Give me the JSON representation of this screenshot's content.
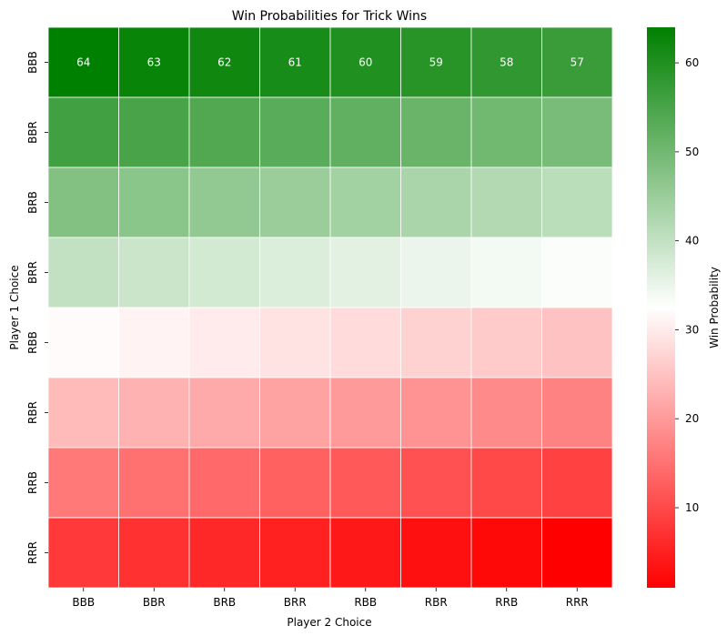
{
  "chart_data": {
    "type": "heatmap",
    "title": "Win Probabilities for Trick Wins",
    "xlabel": "Player 2 Choice",
    "ylabel": "Player 1 Choice",
    "x_categories": [
      "BBB",
      "BBR",
      "BRB",
      "BRR",
      "RBB",
      "RBR",
      "RRB",
      "RRR"
    ],
    "y_categories": [
      "BBB",
      "BBR",
      "BRB",
      "BRR",
      "RBB",
      "RBR",
      "RRB",
      "RRR"
    ],
    "values": [
      [
        64,
        63,
        62,
        61,
        60,
        59,
        58,
        57
      ],
      [
        56,
        55,
        54,
        53,
        52,
        51,
        50,
        49
      ],
      [
        48,
        47,
        46,
        45,
        44,
        43,
        42,
        41
      ],
      [
        40,
        39,
        38,
        37,
        36,
        35,
        34,
        33
      ],
      [
        32,
        31,
        30,
        29,
        28,
        27,
        26,
        25
      ],
      [
        24,
        23,
        22,
        21,
        20,
        19,
        18,
        17
      ],
      [
        16,
        15,
        14,
        13,
        12,
        11,
        10,
        9
      ],
      [
        8,
        7,
        6,
        5,
        4,
        3,
        2,
        1
      ]
    ],
    "annotated_rows": [
      0
    ],
    "colorbar": {
      "label": "Win Probability",
      "range": [
        1,
        64
      ],
      "ticks": [
        10,
        20,
        30,
        40,
        50,
        60
      ],
      "colors": [
        "#ff0000",
        "#ffffff",
        "#008000"
      ]
    },
    "grid": false
  }
}
